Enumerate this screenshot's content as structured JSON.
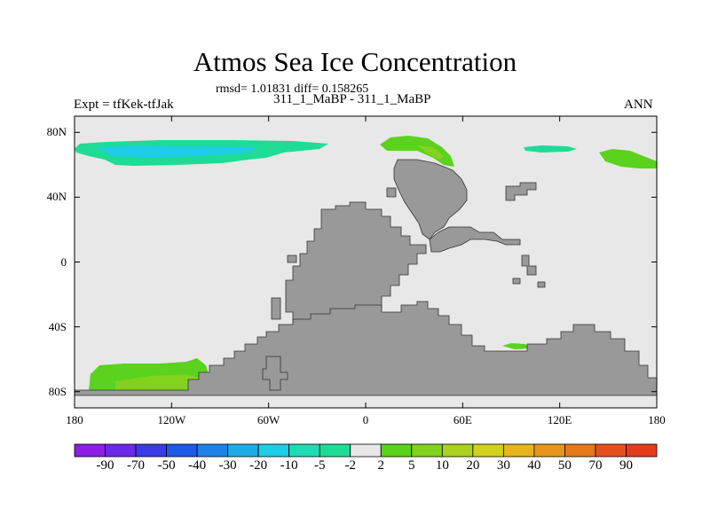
{
  "title": "Atmos Sea Ice Concentration",
  "subtitle": "rmsd= 1.01831 diff= 0.158265",
  "left_label": "Expt = tfKek-tfJak",
  "center_label": "311_1_MaBP - 311_1_MaBP",
  "right_label": "ANN",
  "chart_data": {
    "type": "heatmap",
    "projection": "cylindrical equidistant map",
    "x_range": [
      -180,
      180
    ],
    "y_range": [
      -90,
      90
    ],
    "x_ticks": [
      "180",
      "120W",
      "60W",
      "0",
      "60E",
      "120E",
      "180"
    ],
    "y_ticks": [
      "80N",
      "40N",
      "0",
      "40S",
      "80S"
    ],
    "land_color": "#999999",
    "ocean_color": "#e8e8e8",
    "colorbar": {
      "labels": [
        "-90",
        "-70",
        "-50",
        "-40",
        "-30",
        "-20",
        "-10",
        "-5",
        "-2",
        "2",
        "5",
        "10",
        "20",
        "30",
        "40",
        "50",
        "70",
        "90"
      ],
      "colors": [
        "#8c1ee6",
        "#6b28e6",
        "#3a3ae6",
        "#1e5ae6",
        "#1e82e6",
        "#1eaae6",
        "#1ecde6",
        "#1edcb4",
        "#1edc96",
        "#e8e8e8",
        "#5ad21e",
        "#82d21e",
        "#aad21e",
        "#d2d21e",
        "#e6b41e",
        "#e6961e",
        "#e6781e",
        "#e6501e",
        "#e63c1e"
      ]
    },
    "anomaly_regions": [
      {
        "region": "Arctic, 170W-60W",
        "value_class": "-5 to -2"
      },
      {
        "region": "Barents/Kara Sea",
        "value_class": "2 to 10"
      },
      {
        "region": "Arctic, 95E-135E",
        "value_class": "-5 to -2"
      },
      {
        "region": "East Siberian Sea",
        "value_class": "2 to 10"
      },
      {
        "region": "Southern Ocean, 180-110W",
        "value_class": "2 to 10"
      },
      {
        "region": "Southern Ocean, 70W-45W",
        "value_class": "2 to 20"
      },
      {
        "region": "Southern Ocean, 85E-100E",
        "value_class": "2 to 5"
      }
    ]
  }
}
